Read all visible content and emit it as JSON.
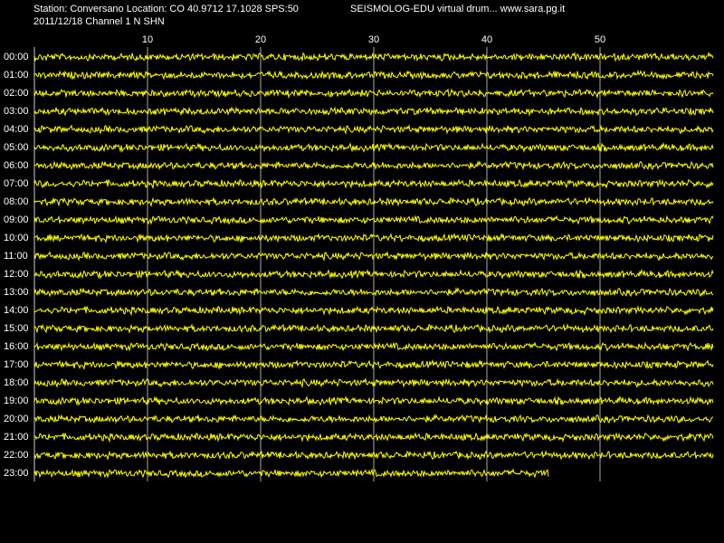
{
  "header": {
    "station": "Station: Conversano Location: CO 40.9712 17.1028 SPS:50",
    "program": "SEISMOLOG-EDU virtual drum... www.sara.pg.it",
    "date_channel": "2011/12/18  Channel 1 N SHN"
  },
  "chart_data": {
    "type": "drum",
    "categories": [
      "00:00",
      "01:00",
      "02:00",
      "03:00",
      "04:00",
      "05:00",
      "06:00",
      "07:00",
      "08:00",
      "09:00",
      "10:00",
      "11:00",
      "12:00",
      "13:00",
      "14:00",
      "15:00",
      "16:00",
      "17:00",
      "18:00",
      "19:00",
      "20:00",
      "21:00",
      "22:00",
      "23:00"
    ],
    "values": [
      60,
      60,
      60,
      60,
      60,
      60,
      60,
      60,
      60,
      60,
      60,
      60,
      60,
      60,
      60,
      60,
      60,
      60,
      60,
      60,
      60,
      60,
      60,
      45.5
    ],
    "color": "#ffff00",
    "xlim": [
      0,
      60
    ],
    "xticks": [
      10,
      20,
      30,
      40,
      50
    ],
    "grid": true
  }
}
